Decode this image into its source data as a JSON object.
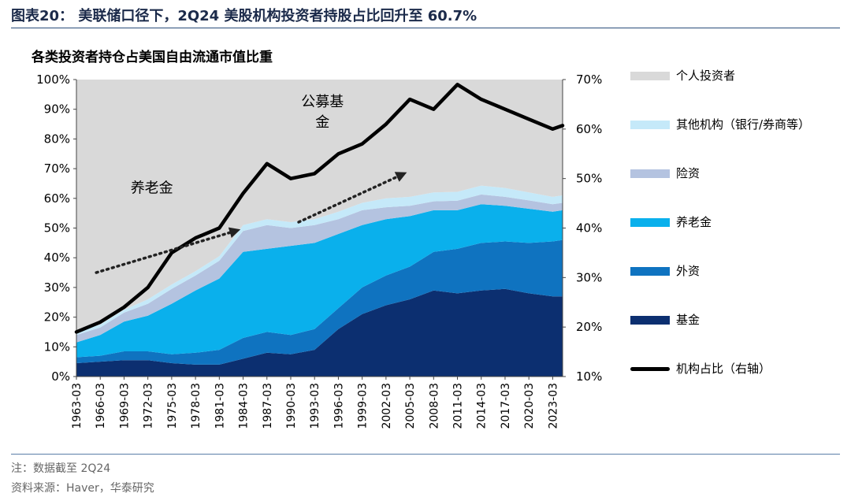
{
  "header": {
    "figure_title": "图表20： 美联储口径下，2Q24 美股机构投资者持股占比回升至 60.7%",
    "chart_title": "各类投资者持仓占美国自由流通市值比重"
  },
  "footer": {
    "note": "注：数据截至 2Q24",
    "source": "资料来源：Haver，华泰研究"
  },
  "colors": {
    "retail": "#d9d9d9",
    "other_inst": "#c5e9f9",
    "insurance": "#b4c3e0",
    "pension": "#0ab0ec",
    "foreign": "#0f73c0",
    "funds": "#0c2f70",
    "inst_line": "#000000",
    "arrow": "#222222"
  },
  "chart_data": {
    "type": "area",
    "title": "各类投资者持仓占美国自由流通市值比重",
    "x": [
      1963,
      1966,
      1969,
      1972,
      1975,
      1978,
      1981,
      1984,
      1987,
      1990,
      1993,
      1996,
      1999,
      2002,
      2005,
      2008,
      2011,
      2014,
      2017,
      2020,
      2023,
      2024.25
    ],
    "x_tick_labels": [
      "1963-03",
      "1966-03",
      "1969-03",
      "1972-03",
      "1975-03",
      "1978-03",
      "1981-03",
      "1984-03",
      "1987-03",
      "1990-03",
      "1993-03",
      "1996-03",
      "1999-03",
      "2002-03",
      "2005-03",
      "2008-03",
      "2011-03",
      "2014-03",
      "2017-03",
      "2020-03",
      "2023-03"
    ],
    "y_left_ticks": [
      "0%",
      "10%",
      "20%",
      "30%",
      "40%",
      "50%",
      "60%",
      "70%",
      "80%",
      "90%",
      "100%"
    ],
    "y_right_ticks": [
      "10%",
      "20%",
      "30%",
      "40%",
      "50%",
      "60%",
      "70%"
    ],
    "ylim_left": [
      0,
      100
    ],
    "ylim_right": [
      10,
      70
    ],
    "stack_order": [
      "基金",
      "外资",
      "养老金",
      "险资",
      "其他机构（银行/券商等）",
      "个人投资者"
    ],
    "series": [
      {
        "name": "基金",
        "color_key": "funds",
        "values": [
          4.5,
          5,
          5.5,
          5.5,
          4.5,
          4,
          4,
          6,
          8,
          7.5,
          9,
          16,
          21,
          24,
          26,
          29,
          28,
          29,
          29.5,
          28,
          27,
          27
        ]
      },
      {
        "name": "外资",
        "color_key": "foreign",
        "values": [
          2,
          2,
          3,
          3,
          3,
          4,
          5,
          7,
          7,
          6.5,
          7,
          7,
          9,
          10,
          11,
          13,
          15,
          16,
          16,
          17,
          18.5,
          19
        ]
      },
      {
        "name": "养老金",
        "color_key": "pension",
        "values": [
          5,
          7,
          10,
          12,
          17,
          21,
          24,
          29,
          28,
          30,
          29,
          25,
          21,
          19,
          17,
          14,
          13,
          13,
          12,
          11.5,
          10,
          10
        ]
      },
      {
        "name": "险资",
        "color_key": "insurance",
        "values": [
          2.5,
          2.5,
          3,
          4,
          5,
          5,
          6,
          7,
          8,
          6,
          6,
          5,
          5,
          4,
          3.5,
          3,
          3.2,
          3.3,
          3,
          2.8,
          2.5,
          2.5
        ]
      },
      {
        "name": "其他机构（银行/券商等）",
        "color_key": "other_inst",
        "values": [
          1,
          1,
          1,
          1.5,
          1.5,
          1.5,
          1.5,
          2,
          2,
          2,
          2,
          2.5,
          2.5,
          3,
          3,
          3,
          3,
          3,
          3,
          2.7,
          2.5,
          2.5
        ]
      },
      {
        "name": "个人投资者",
        "color_key": "retail",
        "values": [
          85,
          82.5,
          77.5,
          74,
          69,
          64.5,
          59.5,
          49,
          47,
          48,
          47,
          44.5,
          41.5,
          40,
          39.5,
          38,
          37.8,
          35.7,
          36.5,
          38,
          39.5,
          39
        ]
      },
      {
        "name": "机构占比（右轴）",
        "color_key": "inst_line",
        "axis": "right",
        "values": [
          19,
          21,
          24,
          28,
          35,
          38,
          40,
          47,
          53,
          50,
          51,
          55,
          57,
          61,
          66,
          64,
          69,
          66,
          64,
          62,
          60,
          60.7
        ]
      }
    ],
    "legend": [
      {
        "label": "个人投资者",
        "color_key": "retail",
        "kind": "area"
      },
      {
        "label": "其他机构（银行/券商等）",
        "color_key": "other_inst",
        "kind": "area"
      },
      {
        "label": "险资",
        "color_key": "insurance",
        "kind": "area"
      },
      {
        "label": "养老金",
        "color_key": "pension",
        "kind": "area"
      },
      {
        "label": "外资",
        "color_key": "foreign",
        "kind": "area"
      },
      {
        "label": "基金",
        "color_key": "funds",
        "kind": "area"
      },
      {
        "label": "机构占比（右轴）",
        "color_key": "inst_line",
        "kind": "line"
      }
    ],
    "annotations": [
      {
        "text": "养老金",
        "from": [
          1965.5,
          35
        ],
        "to": [
          1983,
          49
        ],
        "label_at": [
          1972.5,
          62
        ]
      },
      {
        "text": "公募基金",
        "from": [
          1991,
          52
        ],
        "to": [
          2004,
          68
        ],
        "label_at": [
          1994,
          91
        ]
      }
    ]
  }
}
